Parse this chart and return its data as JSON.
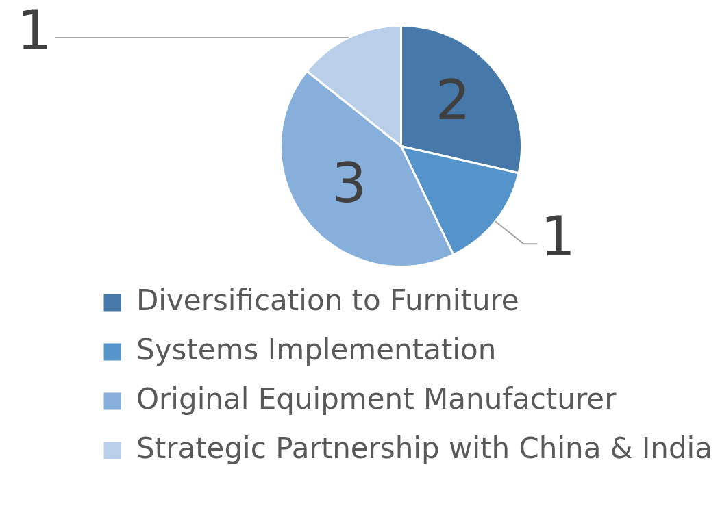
{
  "chart_data": {
    "type": "pie",
    "categories": [
      "Diversification to Furniture",
      "Systems Implementation",
      "Original Equipment Manufacturer",
      "Strategic Partnership with China & India"
    ],
    "values": [
      2,
      1,
      3,
      1
    ],
    "colors": [
      "#4679a9",
      "#5494cb",
      "#87afdc",
      "#b9cee9"
    ],
    "data_labels": true,
    "legend": "bottom"
  }
}
